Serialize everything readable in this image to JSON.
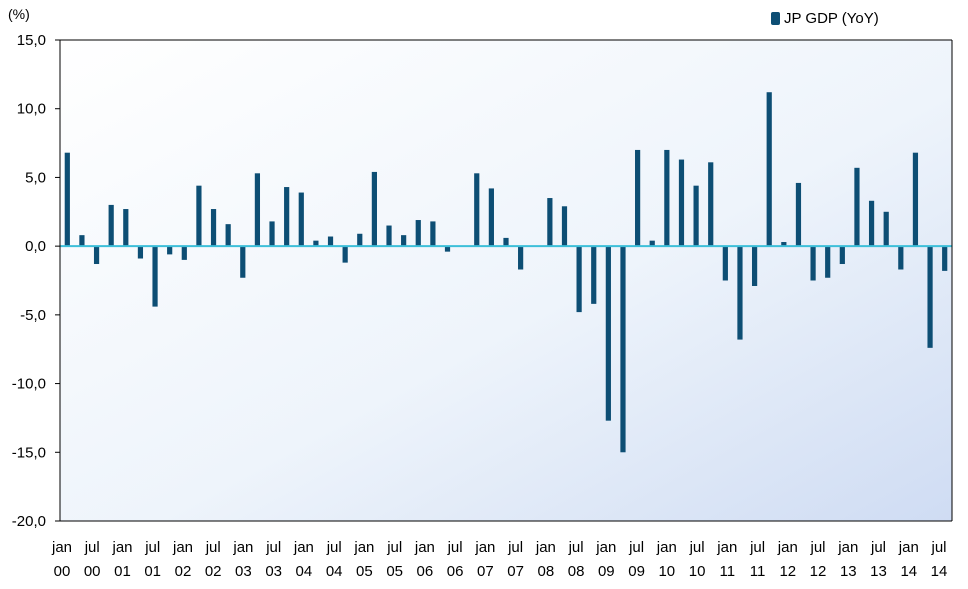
{
  "chart_data": {
    "type": "bar",
    "unit_label": "(%)",
    "legend": "JP GDP (YoY)",
    "legend_position": "top-right",
    "ylim": [
      -20,
      15
    ],
    "yticks": [
      "15,0",
      "10,0",
      "5,0",
      "0,0",
      "-5,0",
      "-10,0",
      "-15,0",
      "-20,0"
    ],
    "ytick_values": [
      15,
      10,
      5,
      0,
      -5,
      -10,
      -15,
      -20
    ],
    "xtick_labels": [
      [
        "jan",
        "00"
      ],
      [
        "jul",
        "00"
      ],
      [
        "jan",
        "01"
      ],
      [
        "jul",
        "01"
      ],
      [
        "jan",
        "02"
      ],
      [
        "jul",
        "02"
      ],
      [
        "jan",
        "03"
      ],
      [
        "jul",
        "03"
      ],
      [
        "jan",
        "04"
      ],
      [
        "jul",
        "04"
      ],
      [
        "jan",
        "05"
      ],
      [
        "jul",
        "05"
      ],
      [
        "jan",
        "06"
      ],
      [
        "jul",
        "06"
      ],
      [
        "jan",
        "07"
      ],
      [
        "jul",
        "07"
      ],
      [
        "jan",
        "08"
      ],
      [
        "jul",
        "08"
      ],
      [
        "jan",
        "09"
      ],
      [
        "jul",
        "09"
      ],
      [
        "jan",
        "10"
      ],
      [
        "jul",
        "10"
      ],
      [
        "jan",
        "11"
      ],
      [
        "jul",
        "11"
      ],
      [
        "jan",
        "12"
      ],
      [
        "jul",
        "12"
      ],
      [
        "jan",
        "13"
      ],
      [
        "jul",
        "13"
      ],
      [
        "jan",
        "14"
      ],
      [
        "jul",
        "14"
      ]
    ],
    "series": [
      {
        "name": "JP GDP (YoY)",
        "values": [
          6.8,
          0.8,
          -1.3,
          3.0,
          2.7,
          -0.9,
          -4.4,
          -0.6,
          -1.0,
          4.4,
          2.7,
          1.6,
          -2.3,
          5.3,
          1.8,
          4.3,
          3.9,
          0.4,
          0.7,
          -1.2,
          0.9,
          5.4,
          1.5,
          0.8,
          1.9,
          1.8,
          -0.4,
          0.0,
          5.3,
          4.2,
          0.6,
          -1.7,
          0.0,
          3.5,
          2.9,
          -4.8,
          -4.2,
          -12.7,
          -15.0,
          7.0,
          0.4,
          7.0,
          6.3,
          4.4,
          6.1,
          -2.5,
          -6.8,
          -2.9,
          11.2,
          0.3,
          4.6,
          -2.5,
          -2.3,
          -1.3,
          5.7,
          3.3,
          2.5,
          -1.7,
          6.8,
          -7.4,
          -1.8
        ]
      }
    ],
    "colors": {
      "bar": "#0d4e74",
      "zero_line": "#3cbfd9",
      "axis": "#000000"
    }
  }
}
